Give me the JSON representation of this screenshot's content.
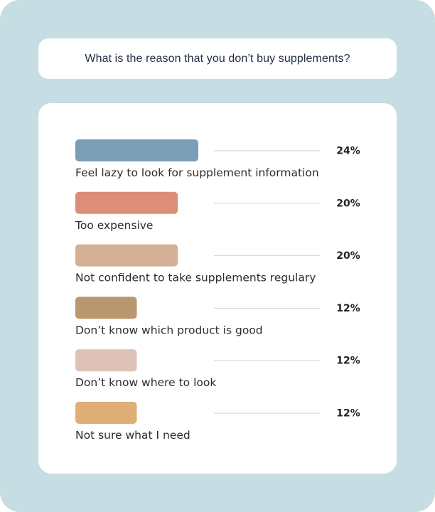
{
  "title": "What is the reason that you don’t buy supplements?",
  "chart_data": {
    "type": "bar",
    "orientation": "horizontal",
    "title": "What is the reason that you don’t buy supplements?",
    "categories": [
      "Feel lazy to look for supplement information",
      "Too expensive",
      "Not confident to take supplements regulary",
      "Don’t know which product is good",
      "Don’t know where to look",
      "Not sure what I need"
    ],
    "values": [
      24,
      20,
      20,
      12,
      12,
      12
    ],
    "value_labels": [
      "24%",
      "20%",
      "20%",
      "12%",
      "12%",
      "12%"
    ],
    "unit": "%",
    "xlim": [
      0,
      24
    ],
    "colors": [
      "#7b9db6",
      "#dd8d78",
      "#d4b096",
      "#b9976f",
      "#dfc2b7",
      "#dfaf77"
    ],
    "legend": "none",
    "grid": false
  },
  "colors": {
    "background": "#c5dde3",
    "card": "#ffffff",
    "title_text": "#1f2d45",
    "leader_line": "#cfcfcf"
  }
}
